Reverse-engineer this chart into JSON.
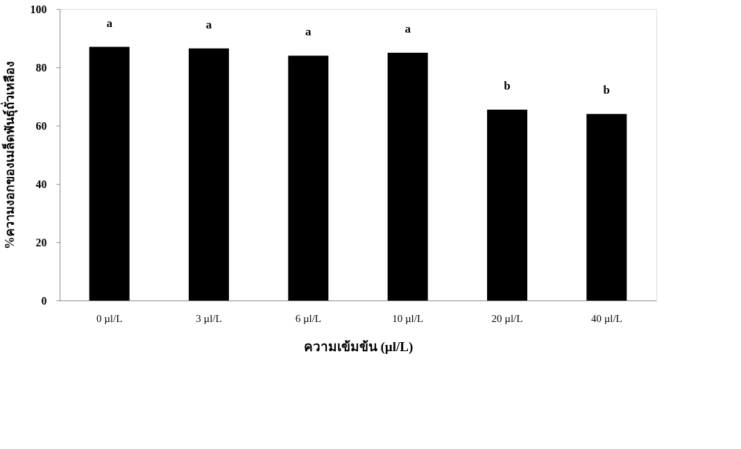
{
  "chart_data": {
    "type": "bar",
    "categories": [
      "0 µl/L",
      "3 µl/L",
      "6 µl/L",
      "10 µl/L",
      "20 µl/L",
      "40 µl/L"
    ],
    "values": [
      87,
      86.5,
      84,
      85,
      65.5,
      64
    ],
    "color": "#000000",
    "xlabel": "ความเข้มข้น (µl/L)",
    "ylabel": "%ความงอกของเมล็ดพันธุ์ถั่วเหลือง",
    "ylim": [
      0,
      100
    ],
    "yticks": [
      0,
      20,
      40,
      60,
      80,
      100
    ],
    "grid": false,
    "annotations": [
      "a",
      "a",
      "a",
      "a",
      "b",
      "b"
    ]
  }
}
